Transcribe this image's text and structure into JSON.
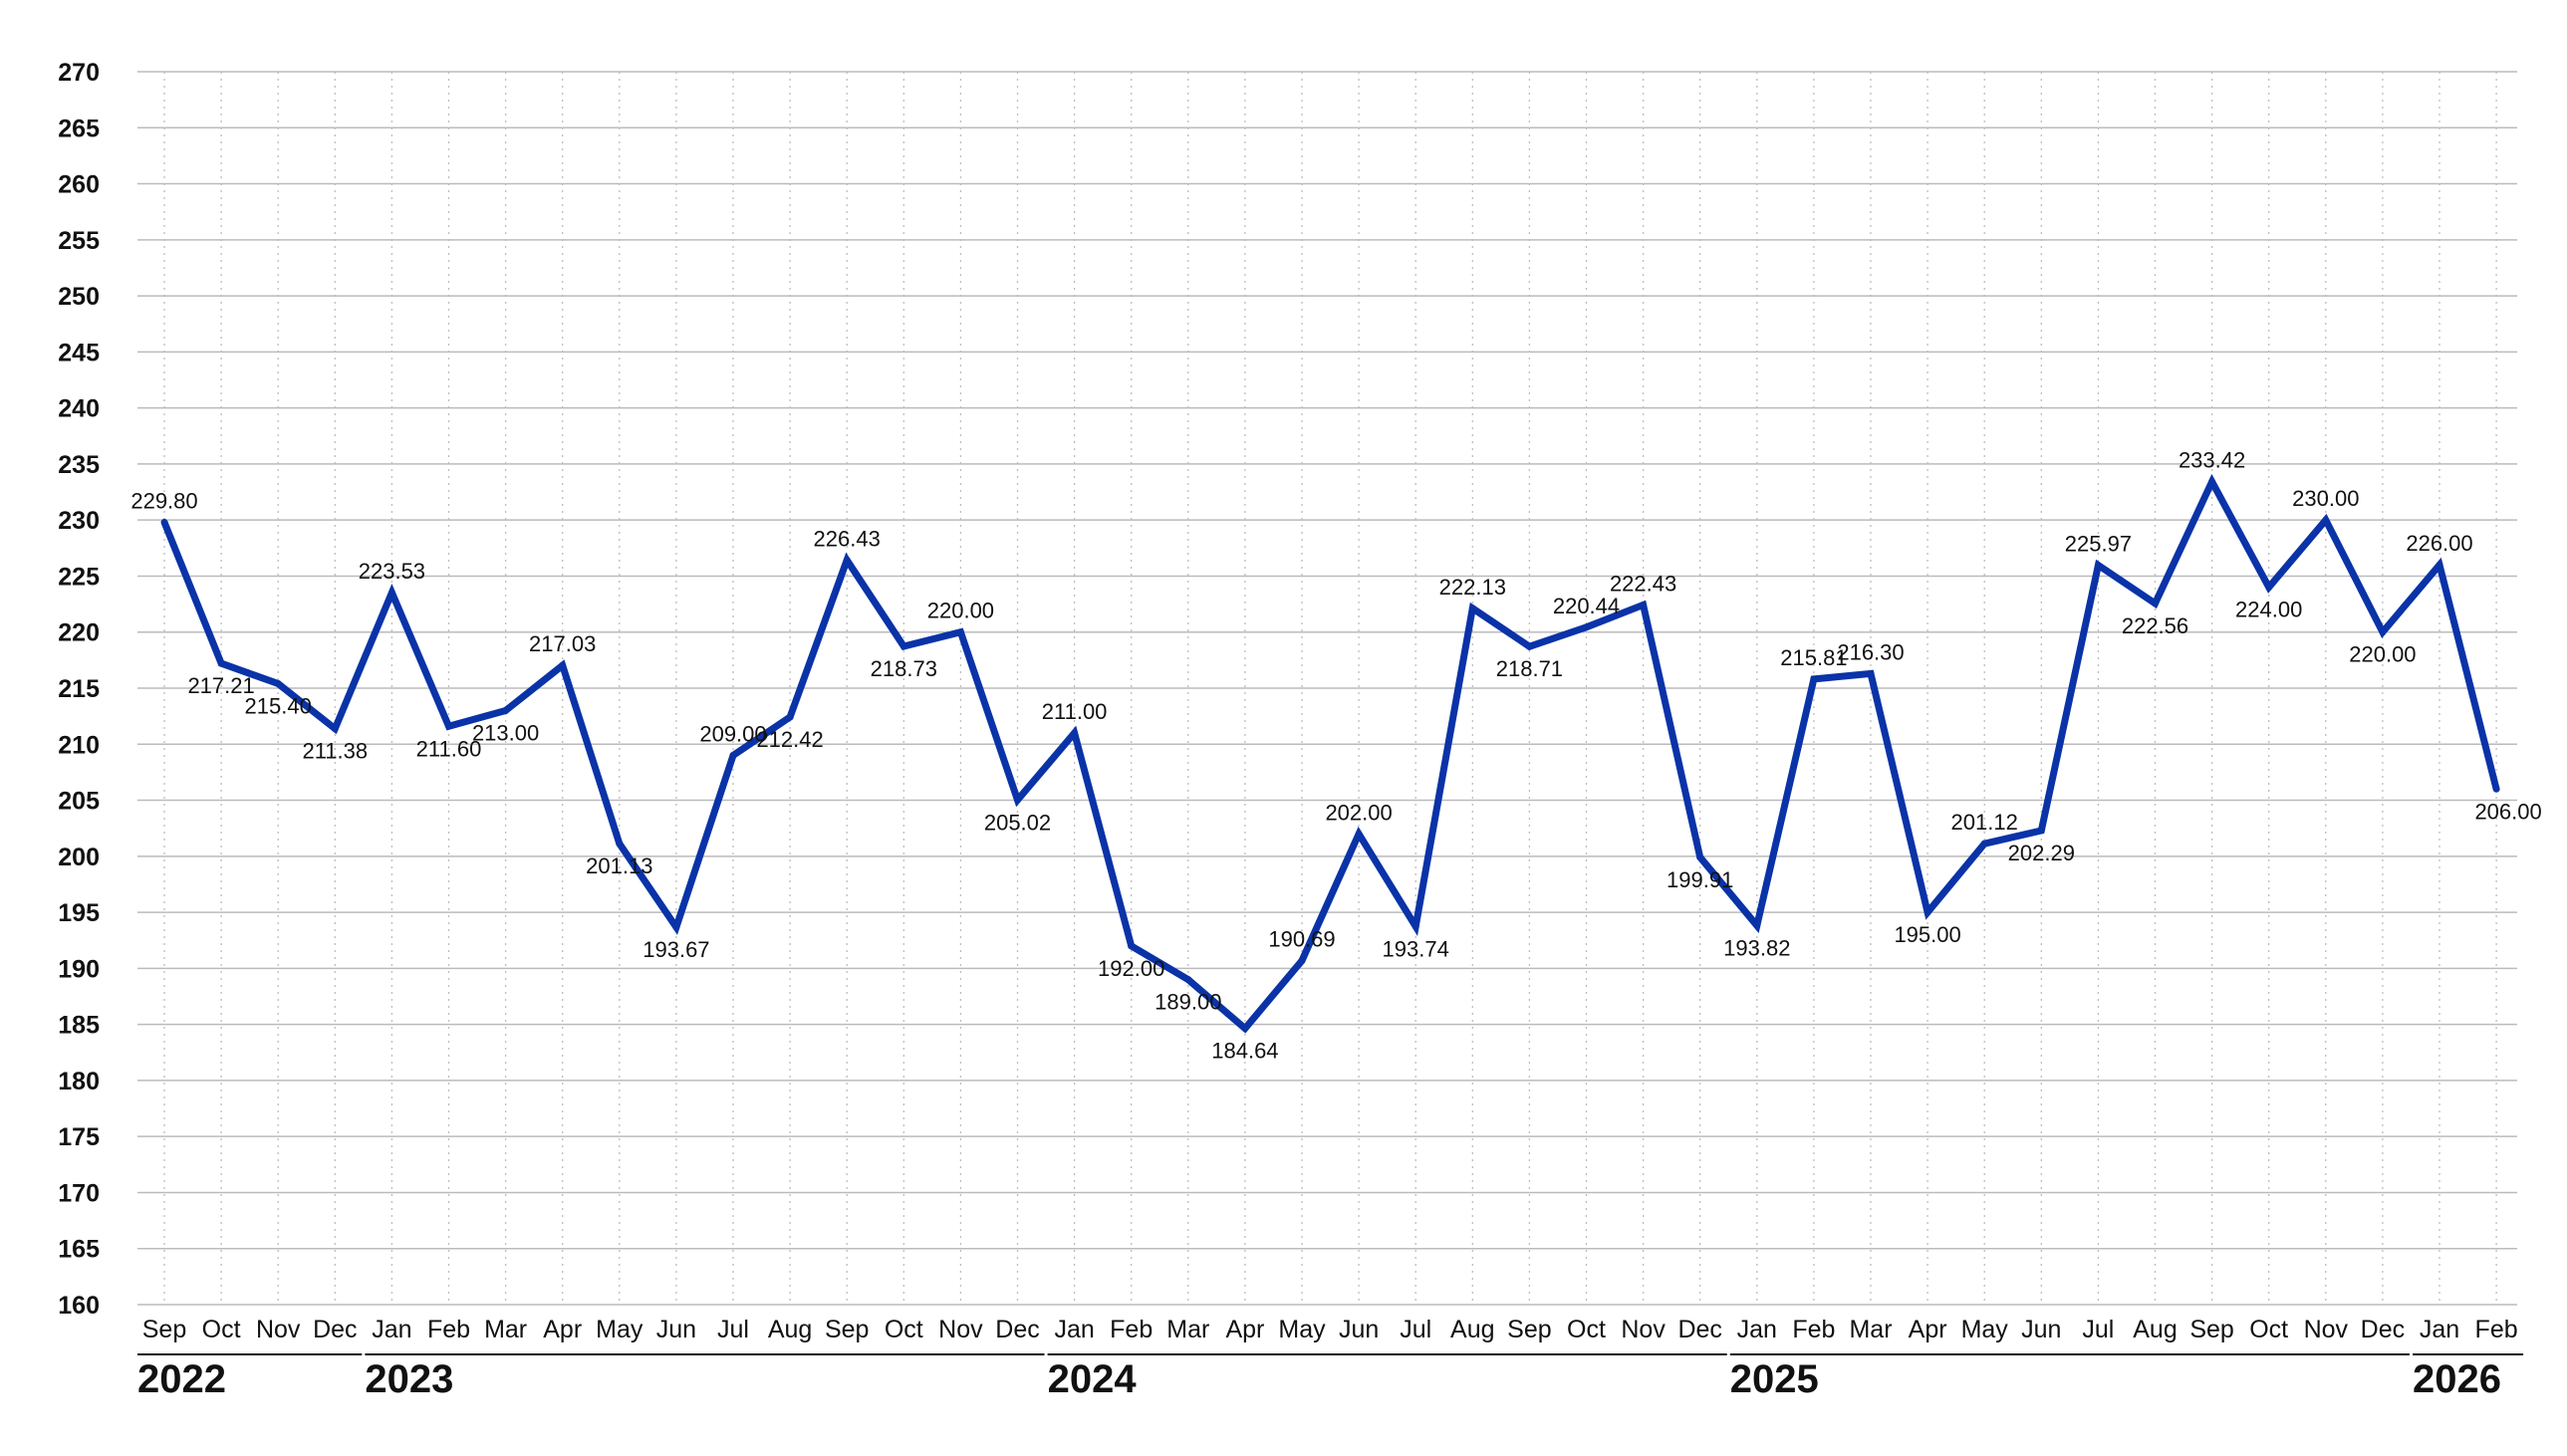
{
  "chart_data": {
    "type": "line",
    "line_color": "#0a33a8",
    "gridline_color": "#bbbbbb",
    "ylim": [
      160,
      270
    ],
    "yticks": [
      160,
      165,
      170,
      175,
      180,
      185,
      190,
      195,
      200,
      205,
      210,
      215,
      220,
      225,
      230,
      235,
      240,
      245,
      250,
      255,
      260,
      265,
      270
    ],
    "grid": "horizontal solid, vertical dotted",
    "title": "",
    "xlabel": "",
    "ylabel": "",
    "x": [
      "Sep",
      "Oct",
      "Nov",
      "Dec",
      "Jan",
      "Feb",
      "Mar",
      "Apr",
      "May",
      "Jun",
      "Jul",
      "Aug",
      "Sep",
      "Oct",
      "Nov",
      "Dec",
      "Jan",
      "Feb",
      "Mar",
      "Apr",
      "May",
      "Jun",
      "Jul",
      "Aug",
      "Sep",
      "Oct",
      "Nov",
      "Dec",
      "Jan",
      "Feb",
      "Mar",
      "Apr",
      "May",
      "Jun",
      "Jul",
      "Aug",
      "Sep",
      "Oct",
      "Nov",
      "Dec",
      "Jan",
      "Feb"
    ],
    "values": [
      229.8,
      217.21,
      215.4,
      211.38,
      223.53,
      211.6,
      213.0,
      217.03,
      201.13,
      193.67,
      209.0,
      212.42,
      226.43,
      218.73,
      220.0,
      205.02,
      211.0,
      192.0,
      189.0,
      184.64,
      190.69,
      202.0,
      193.74,
      222.13,
      218.71,
      220.44,
      222.43,
      199.91,
      193.82,
      215.81,
      216.3,
      195.0,
      201.12,
      202.29,
      225.97,
      222.56,
      233.42,
      224.0,
      230.0,
      220.0,
      226.0,
      206.0
    ],
    "data_labels": [
      "229.80",
      "217.21",
      "215.40",
      "211.38",
      "223.53",
      "211.60",
      "213.00",
      "217.03",
      "201.13",
      "193.67",
      "209.00",
      "212.42",
      "226.43",
      "218.73",
      "220.00",
      "205.02",
      "211.00",
      "192.00",
      "189.00",
      "184.64",
      "190.69",
      "202.00",
      "193.74",
      "222.13",
      "218.71",
      "220.44",
      "222.43",
      "199.91",
      "193.82",
      "215.81",
      "216.30",
      "195.00",
      "201.12",
      "202.29",
      "225.97",
      "222.56",
      "233.42",
      "224.00",
      "230.00",
      "220.00",
      "226.00",
      "206.00"
    ],
    "label_position": [
      "above",
      "below",
      "below",
      "below",
      "above",
      "below",
      "below",
      "above",
      "below",
      "below",
      "above",
      "below",
      "above",
      "below",
      "above",
      "below",
      "above",
      "below",
      "below",
      "below",
      "above",
      "above",
      "below",
      "above",
      "below",
      "above",
      "above",
      "below",
      "below",
      "above",
      "above",
      "below",
      "above",
      "below",
      "above",
      "below",
      "above",
      "below",
      "above",
      "below",
      "above",
      "below"
    ],
    "years": [
      {
        "label": "2022",
        "start": 0,
        "end": 3
      },
      {
        "label": "2023",
        "start": 4,
        "end": 15
      },
      {
        "label": "2024",
        "start": 16,
        "end": 27
      },
      {
        "label": "2025",
        "start": 28,
        "end": 39
      },
      {
        "label": "2026",
        "start": 40,
        "end": 41
      }
    ]
  }
}
